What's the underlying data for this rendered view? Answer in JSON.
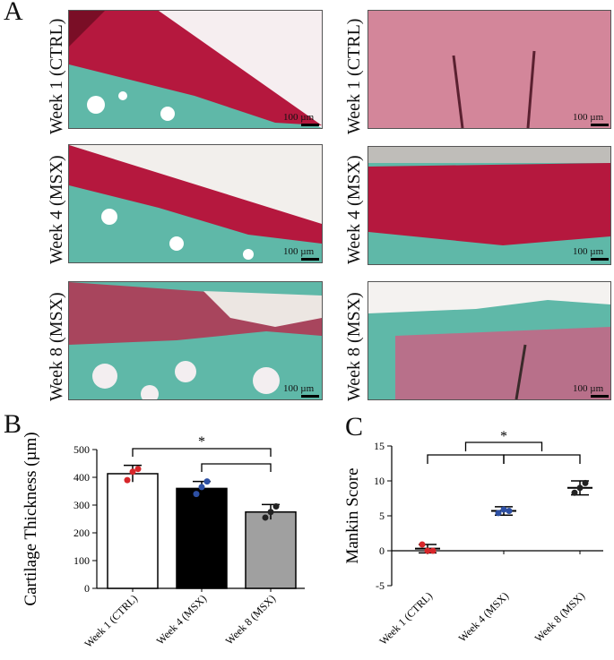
{
  "panel_letters": {
    "a": "A",
    "b": "B",
    "c": "C"
  },
  "micrographs": {
    "left": [
      {
        "label": "Week 1 (CTRL)",
        "scale": "100 µm"
      },
      {
        "label": "Week 4 (MSX)",
        "scale": "100 µm"
      },
      {
        "label": "Week 8 (MSX)",
        "scale": "100 µm"
      }
    ],
    "right": [
      {
        "label": "Week 1 (CTRL)",
        "scale": "100 µm"
      },
      {
        "label": "Week 4 (MSX)",
        "scale": "100 µm"
      },
      {
        "label": "Week 8 (MSX)",
        "scale": "100 µm"
      }
    ]
  },
  "colors": {
    "red_stain": "#b5183e",
    "teal_stain": "#5fb8a8",
    "pink_stain": "#d3869a"
  },
  "chart_data": [
    {
      "type": "bar",
      "panel": "B",
      "title": "",
      "categories": [
        "Week 1 (CTRL)",
        "Week 4 (MSX)",
        "Week 8 (MSX)"
      ],
      "values": [
        413,
        360,
        275
      ],
      "errors": [
        30,
        25,
        27
      ],
      "points": [
        [
          390,
          420,
          430
        ],
        [
          340,
          365,
          385
        ],
        [
          255,
          275,
          295
        ]
      ],
      "bar_colors": [
        "#ffffff",
        "#000000",
        "#a0a0a0"
      ],
      "point_colors": [
        "#d7262a",
        "#2d4fa3",
        "#222222"
      ],
      "ylabel": "Cartilage Thickness (µm)",
      "ylim": [
        0,
        500
      ],
      "yticks": [
        "0",
        "100",
        "200",
        "300",
        "400",
        "500"
      ],
      "significance": [
        {
          "from": 0,
          "to": 2,
          "label": "*"
        },
        {
          "from": 1,
          "to": 2,
          "label": ""
        }
      ]
    },
    {
      "type": "scatter",
      "panel": "C",
      "title": "",
      "categories": [
        "Week 1 (CTRL)",
        "Week 4 (MSX)",
        "Week 8 (MSX)"
      ],
      "means": [
        0.3,
        5.7,
        9
      ],
      "errors": [
        0.6,
        0.6,
        1
      ],
      "points": [
        [
          0.9,
          0.0,
          0.0
        ],
        [
          5.4,
          5.9,
          5.7
        ],
        [
          8.3,
          9.0,
          9.7
        ]
      ],
      "point_colors": [
        "#d7262a",
        "#2d4fa3",
        "#222222"
      ],
      "ylabel": "Mankin Score",
      "ylim": [
        -5,
        15
      ],
      "yticks": [
        "-5",
        "0",
        "5",
        "10",
        "15"
      ],
      "significance": [
        {
          "from": 0,
          "to": 1,
          "label": ""
        },
        {
          "from": 1,
          "to": 2,
          "label": ""
        },
        {
          "from": 0.5,
          "to": 1.5,
          "label": "*"
        }
      ]
    }
  ]
}
